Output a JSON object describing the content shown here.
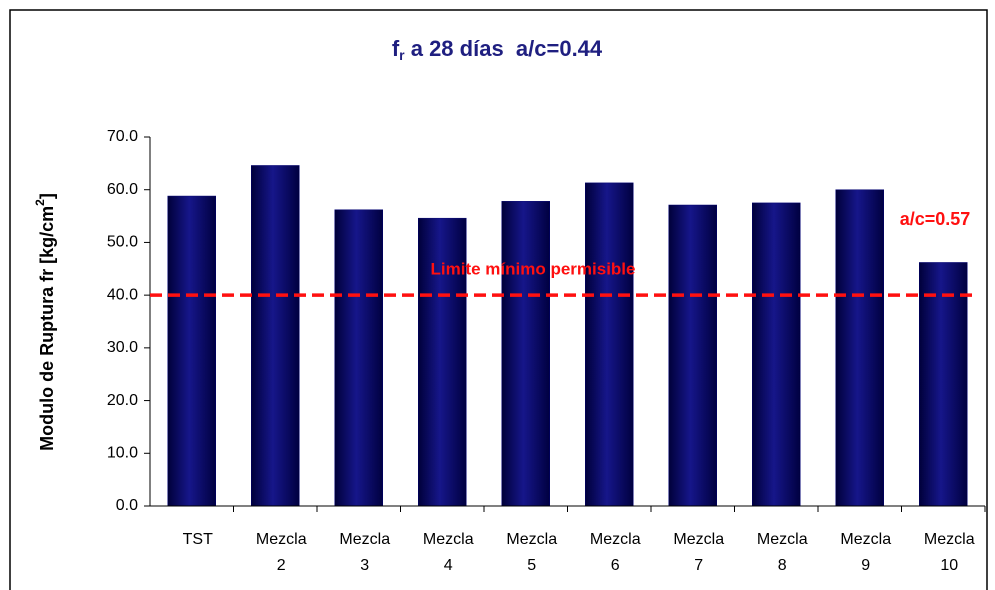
{
  "chart_data": {
    "type": "bar",
    "title": "f",
    "title_subscript": "r",
    "title_rest": " a 28 días  a/c=0.44",
    "y_label": "Modulo de Ruptura fr [kg/cm",
    "y_label_superscript": "2",
    "y_label_rest": "]",
    "categories": [
      [
        "TST"
      ],
      [
        "Mezcla",
        "2"
      ],
      [
        "Mezcla",
        "3"
      ],
      [
        "Mezcla",
        "4"
      ],
      [
        "Mezcla",
        "5"
      ],
      [
        "Mezcla",
        "6"
      ],
      [
        "Mezcla",
        "7"
      ],
      [
        "Mezcla",
        "8"
      ],
      [
        "Mezcla",
        "9"
      ],
      [
        "Mezcla",
        "10"
      ]
    ],
    "values": [
      58.8,
      64.6,
      56.2,
      54.6,
      57.8,
      61.3,
      57.1,
      57.5,
      60.0,
      46.2
    ],
    "color": "#000070",
    "ylim": [
      0,
      70
    ],
    "yticks": [
      {
        "value": 0,
        "label": "0.0"
      },
      {
        "value": 10,
        "label": "10.0"
      },
      {
        "value": 20,
        "label": "20.0"
      },
      {
        "value": 30,
        "label": "30.0"
      },
      {
        "value": 40,
        "label": "40.0"
      },
      {
        "value": 50,
        "label": "50.0"
      },
      {
        "value": 60,
        "label": "60.0"
      },
      {
        "value": 70,
        "label": "70.0"
      }
    ],
    "reference_line": {
      "value": 40,
      "label": "Limite mínimo permisible",
      "color": "#ff1010"
    },
    "annotation": "a/c=0.57"
  }
}
